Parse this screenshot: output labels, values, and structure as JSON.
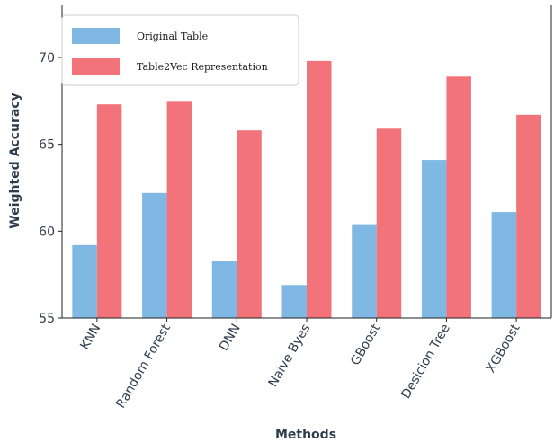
{
  "chart_data": {
    "type": "bar",
    "title": "",
    "xlabel": "Methods",
    "ylabel": "Weighted Accuracy",
    "categories": [
      "KNN",
      "Random Forest",
      "DNN",
      "Naive Byes",
      "GBoost",
      "Desicion Tree",
      "XGBoost"
    ],
    "series": [
      {
        "name": "Original Table",
        "color": "#7fb9e3",
        "values": [
          59.2,
          62.2,
          58.3,
          56.9,
          60.4,
          64.1,
          61.1
        ]
      },
      {
        "name": "Table2Vec Representation",
        "color": "#f2737a",
        "values": [
          67.3,
          67.5,
          65.8,
          69.8,
          65.9,
          68.9,
          66.7
        ]
      }
    ],
    "ylim": [
      55,
      73
    ],
    "yticks": [
      55,
      60,
      65,
      70
    ],
    "legend": "top-left",
    "grid": false
  }
}
